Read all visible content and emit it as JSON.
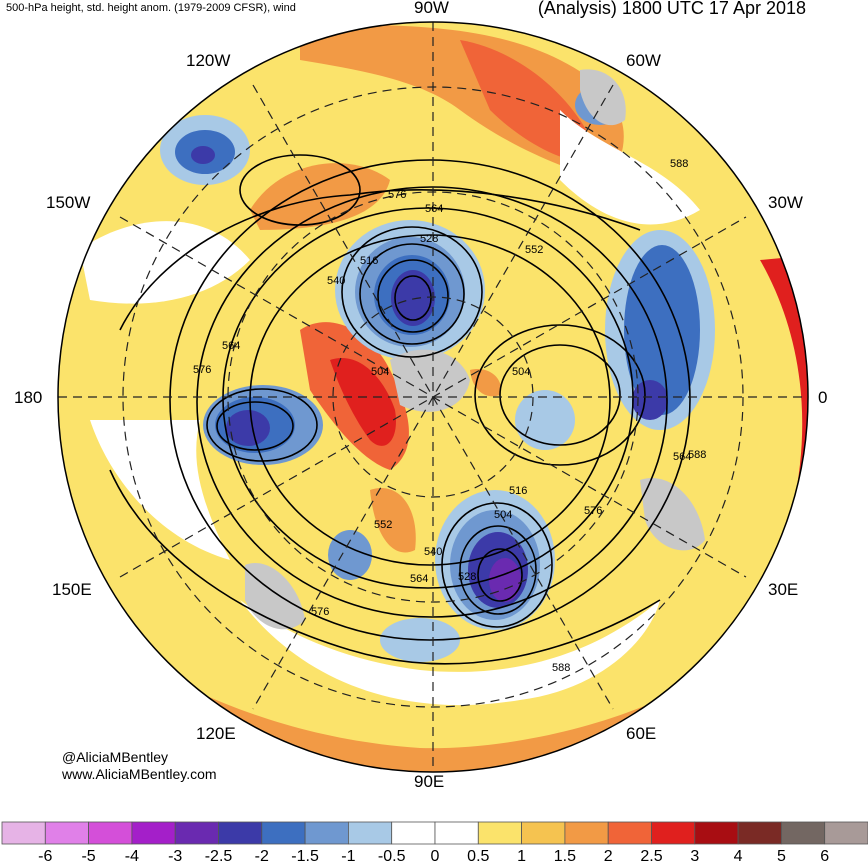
{
  "header": {
    "left_title": "500-hPa height, std. height anom. (1979-2009 CFSR), wind",
    "right_title": "(Analysis) 1800 UTC 17 Apr 2018"
  },
  "longitude_labels": {
    "top": "90W",
    "top_left": "120W",
    "top_right": "60W",
    "upper_left": "150W",
    "upper_right": "30W",
    "left": "180",
    "right": "0",
    "lower_left": "150E",
    "lower_right": "30E",
    "bottom_left": "120E",
    "bottom_right": "60E",
    "bottom": "90E"
  },
  "contour_labels": [
    "576",
    "564",
    "528",
    "552",
    "516",
    "540",
    "564",
    "576",
    "504",
    "504",
    "588",
    "564",
    "588",
    "516",
    "504",
    "576",
    "552",
    "540",
    "564",
    "528",
    "576",
    "588"
  ],
  "credits": {
    "twitter": "@AliciaMBentley",
    "website": "www.AliciaMBentley.com"
  },
  "colorbar": {
    "ticks": [
      "-6",
      "-5",
      "-4",
      "-3",
      "-2.5",
      "-2",
      "-1.5",
      "-1",
      "-0.5",
      "0",
      "0.5",
      "1",
      "1.5",
      "2",
      "2.5",
      "3",
      "4",
      "5",
      "6"
    ],
    "colors": [
      "#e6b3e6",
      "#e080e8",
      "#d44fd9",
      "#a41fc9",
      "#6a2ab0",
      "#3c3aa8",
      "#3d6fc0",
      "#6f98d0",
      "#a8c9e6",
      "#ffffff",
      "#ffffff",
      "#fbe36b",
      "#f5c350",
      "#f29a45",
      "#f06438",
      "#e0201e",
      "#a80d12",
      "#7a2a25",
      "#736762",
      "#a89a98"
    ]
  }
}
